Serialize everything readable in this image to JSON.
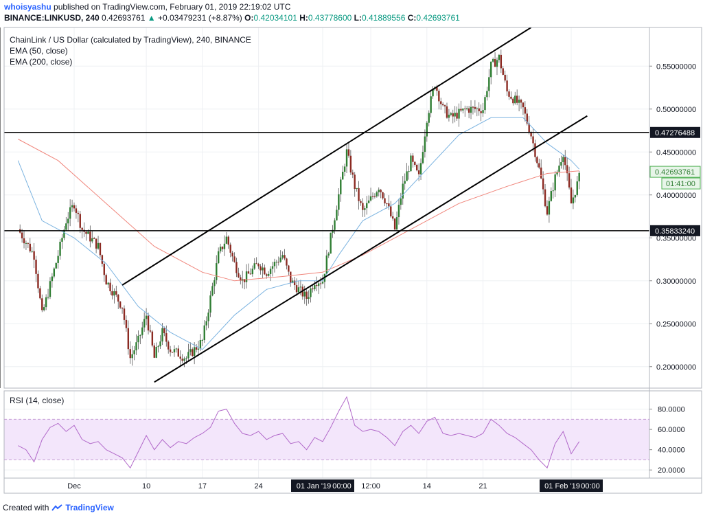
{
  "header": {
    "author": "whoisyashu",
    "published_text": "published on TradingView.com, February 01, 2019 22:19:02 UTC",
    "symbol_line": "BINANCE:LINKUSD, 240",
    "last_price": "0.42693761",
    "change_arrow": "▲",
    "change": "+0.03479231 (+8.87%)",
    "o_label": "O:",
    "o_value": "0.42034101",
    "h_label": "H:",
    "h_value": "0.43778600",
    "l_label": "L:",
    "l_value": "0.41889556",
    "c_label": "C:",
    "c_value": "0.42693761"
  },
  "legend": {
    "title": "ChainLink / US Dollar (calculated by TradingView), 240, BINANCE",
    "ema50": "EMA (50, close)",
    "ema200": "EMA (200, close)",
    "rsi": "RSI (14, close)"
  },
  "footer": {
    "created_with": "Created with",
    "brand": "TradingView"
  },
  "colors": {
    "up": "#2e7d32",
    "down": "#8b2a22",
    "ema50": "#7bb3e0",
    "ema200": "#f0857b",
    "rsi": "#b168c9",
    "rsi_band": "#f3e6fb"
  },
  "chart_data": [
    {
      "type": "candlestick",
      "title": "ChainLink / US Dollar (calculated by TradingView), 240, BINANCE",
      "ylim": [
        0.175,
        0.595
      ],
      "price_ticks": [
        "0.55000000",
        "0.50000000",
        "0.45000000",
        "0.40000000",
        "0.35000000",
        "0.30000000",
        "0.25000000",
        "0.20000000"
      ],
      "price_tick_values": [
        0.55,
        0.5,
        0.45,
        0.4,
        0.35,
        0.3,
        0.25,
        0.2
      ],
      "x_tick_labels": [
        "Dec",
        "10",
        "17",
        "24",
        "01 Jan '19",
        "00:00",
        "12:00",
        "14",
        "21",
        "01 Feb '19",
        "00:00"
      ],
      "last_price_label": "0.42693761",
      "countdown_label": "01:41:00",
      "horizontal_levels": [
        {
          "label": "0.47276488",
          "value": 0.47276488
        },
        {
          "label": "0.35833240",
          "value": 0.3583324
        }
      ],
      "channel_lines": [
        {
          "from": [
            "Dec 7",
            0.295
          ],
          "to": [
            "Jan 27",
            0.595
          ]
        },
        {
          "from": [
            "Dec 11",
            0.182
          ],
          "to": [
            "Feb 3",
            0.492
          ]
        }
      ],
      "vertical_markers": [
        "01 Jan '19",
        "01 Feb '19"
      ],
      "close_path": [
        [
          "Nov 24",
          0.36
        ],
        [
          "Nov 26",
          0.33
        ],
        [
          "Nov 27",
          0.26
        ],
        [
          "Nov 29",
          0.33
        ],
        [
          "Nov 30",
          0.37
        ],
        [
          "Dec 1",
          0.39
        ],
        [
          "Dec 2",
          0.36
        ],
        [
          "Dec 4",
          0.34
        ],
        [
          "Dec 5",
          0.3
        ],
        [
          "Dec 7",
          0.27
        ],
        [
          "Dec 8",
          0.21
        ],
        [
          "Dec 9",
          0.23
        ],
        [
          "Dec 10",
          0.26
        ],
        [
          "Dec 11",
          0.21
        ],
        [
          "Dec 12",
          0.24
        ],
        [
          "Dec 13",
          0.22
        ],
        [
          "Dec 15",
          0.21
        ],
        [
          "Dec 17",
          0.23
        ],
        [
          "Dec 18",
          0.28
        ],
        [
          "Dec 19",
          0.33
        ],
        [
          "Dec 20",
          0.35
        ],
        [
          "Dec 21",
          0.32
        ],
        [
          "Dec 22",
          0.3
        ],
        [
          "Dec 24",
          0.32
        ],
        [
          "Dec 25",
          0.31
        ],
        [
          "Dec 27",
          0.33
        ],
        [
          "Dec 28",
          0.3
        ],
        [
          "Dec 30",
          0.28
        ],
        [
          "Dec 31",
          0.3
        ],
        [
          "Jan 1",
          0.3
        ],
        [
          "Jan 2",
          0.35
        ],
        [
          "Jan 3",
          0.4
        ],
        [
          "Jan 4",
          0.45
        ],
        [
          "Jan 5",
          0.41
        ],
        [
          "Jan 6",
          0.38
        ],
        [
          "Jan 8",
          0.41
        ],
        [
          "Jan 9",
          0.39
        ],
        [
          "Jan 10",
          0.36
        ],
        [
          "Jan 11",
          0.41
        ],
        [
          "Jan 12",
          0.44
        ],
        [
          "Jan 13",
          0.42
        ],
        [
          "Jan 14",
          0.49
        ],
        [
          "Jan 15",
          0.53
        ],
        [
          "Jan 16",
          0.5
        ],
        [
          "Jan 17",
          0.49
        ],
        [
          "Jan 19",
          0.5
        ],
        [
          "Jan 21",
          0.5
        ],
        [
          "Jan 22",
          0.55
        ],
        [
          "Jan 23",
          0.56
        ],
        [
          "Jan 24",
          0.52
        ],
        [
          "Jan 26",
          0.5
        ],
        [
          "Jan 27",
          0.47
        ],
        [
          "Jan 28",
          0.43
        ],
        [
          "Jan 29",
          0.38
        ],
        [
          "Jan 30",
          0.42
        ],
        [
          "Jan 31",
          0.45
        ],
        [
          "Feb 1",
          0.39
        ],
        [
          "Feb 2",
          0.42
        ]
      ],
      "series": [
        {
          "name": "EMA (50, close)",
          "values": [
            [
              "Nov 24",
              0.44
            ],
            [
              "Nov 27",
              0.37
            ],
            [
              "Dec 1",
              0.35
            ],
            [
              "Dec 5",
              0.32
            ],
            [
              "Dec 9",
              0.27
            ],
            [
              "Dec 13",
              0.24
            ],
            [
              "Dec 17",
              0.22
            ],
            [
              "Dec 21",
              0.26
            ],
            [
              "Dec 25",
              0.29
            ],
            [
              "Dec 29",
              0.3
            ],
            [
              "Jan 1",
              0.3
            ],
            [
              "Jan 3",
              0.33
            ],
            [
              "Jan 6",
              0.37
            ],
            [
              "Jan 10",
              0.39
            ],
            [
              "Jan 14",
              0.43
            ],
            [
              "Jan 18",
              0.47
            ],
            [
              "Jan 22",
              0.49
            ],
            [
              "Jan 26",
              0.49
            ],
            [
              "Jan 29",
              0.46
            ],
            [
              "Feb 1",
              0.44
            ],
            [
              "Feb 2",
              0.43
            ]
          ]
        },
        {
          "name": "EMA (200, close)",
          "values": [
            [
              "Nov 24",
              0.465
            ],
            [
              "Nov 29",
              0.44
            ],
            [
              "Dec 5",
              0.39
            ],
            [
              "Dec 11",
              0.34
            ],
            [
              "Dec 17",
              0.31
            ],
            [
              "Dec 21",
              0.3
            ],
            [
              "Dec 27",
              0.305
            ],
            [
              "Jan 1",
              0.31
            ],
            [
              "Jan 6",
              0.33
            ],
            [
              "Jan 12",
              0.36
            ],
            [
              "Jan 18",
              0.39
            ],
            [
              "Jan 24",
              0.41
            ],
            [
              "Jan 29",
              0.425
            ],
            [
              "Feb 2",
              0.428
            ]
          ]
        }
      ]
    },
    {
      "type": "line",
      "title": "RSI (14, close)",
      "ylim": [
        12,
        98
      ],
      "ticks": [
        "80.0000",
        "60.0000",
        "40.0000",
        "20.0000"
      ],
      "tick_values": [
        80,
        60,
        40,
        20
      ],
      "band": [
        30,
        70
      ],
      "series": [
        {
          "name": "RSI (14, close)",
          "values": [
            [
              "Nov 24",
              44
            ],
            [
              "Nov 25",
              40
            ],
            [
              "Nov 26",
              28
            ],
            [
              "Nov 27",
              50
            ],
            [
              "Nov 28",
              62
            ],
            [
              "Nov 29",
              66
            ],
            [
              "Nov 30",
              58
            ],
            [
              "Dec 1",
              64
            ],
            [
              "Dec 2",
              50
            ],
            [
              "Dec 3",
              46
            ],
            [
              "Dec 4",
              48
            ],
            [
              "Dec 5",
              40
            ],
            [
              "Dec 6",
              36
            ],
            [
              "Dec 7",
              32
            ],
            [
              "Dec 8",
              22
            ],
            [
              "Dec 9",
              38
            ],
            [
              "Dec 10",
              54
            ],
            [
              "Dec 11",
              40
            ],
            [
              "Dec 12",
              50
            ],
            [
              "Dec 13",
              42
            ],
            [
              "Dec 14",
              48
            ],
            [
              "Dec 15",
              46
            ],
            [
              "Dec 16",
              52
            ],
            [
              "Dec 17",
              56
            ],
            [
              "Dec 18",
              62
            ],
            [
              "Dec 19",
              78
            ],
            [
              "Dec 20",
              80
            ],
            [
              "Dec 21",
              66
            ],
            [
              "Dec 22",
              56
            ],
            [
              "Dec 23",
              54
            ],
            [
              "Dec 24",
              58
            ],
            [
              "Dec 25",
              50
            ],
            [
              "Dec 26",
              54
            ],
            [
              "Dec 27",
              56
            ],
            [
              "Dec 28",
              46
            ],
            [
              "Dec 29",
              48
            ],
            [
              "Dec 30",
              40
            ],
            [
              "Dec 31",
              52
            ],
            [
              "Jan 1",
              48
            ],
            [
              "Jan 2",
              62
            ],
            [
              "Jan 3",
              78
            ],
            [
              "Jan 4",
              92
            ],
            [
              "Jan 5",
              64
            ],
            [
              "Jan 6",
              58
            ],
            [
              "Jan 7",
              60
            ],
            [
              "Jan 8",
              58
            ],
            [
              "Jan 9",
              52
            ],
            [
              "Jan 10",
              44
            ],
            [
              "Jan 11",
              58
            ],
            [
              "Jan 12",
              64
            ],
            [
              "Jan 13",
              56
            ],
            [
              "Jan 14",
              68
            ],
            [
              "Jan 15",
              72
            ],
            [
              "Jan 16",
              56
            ],
            [
              "Jan 17",
              54
            ],
            [
              "Jan 18",
              56
            ],
            [
              "Jan 19",
              54
            ],
            [
              "Jan 20",
              52
            ],
            [
              "Jan 21",
              56
            ],
            [
              "Jan 22",
              70
            ],
            [
              "Jan 23",
              64
            ],
            [
              "Jan 24",
              56
            ],
            [
              "Jan 25",
              52
            ],
            [
              "Jan 26",
              46
            ],
            [
              "Jan 27",
              40
            ],
            [
              "Jan 28",
              30
            ],
            [
              "Jan 29",
              22
            ],
            [
              "Jan 30",
              46
            ],
            [
              "Jan 31",
              58
            ],
            [
              "Feb 1",
              36
            ],
            [
              "Feb 2",
              48
            ]
          ]
        }
      ]
    }
  ]
}
